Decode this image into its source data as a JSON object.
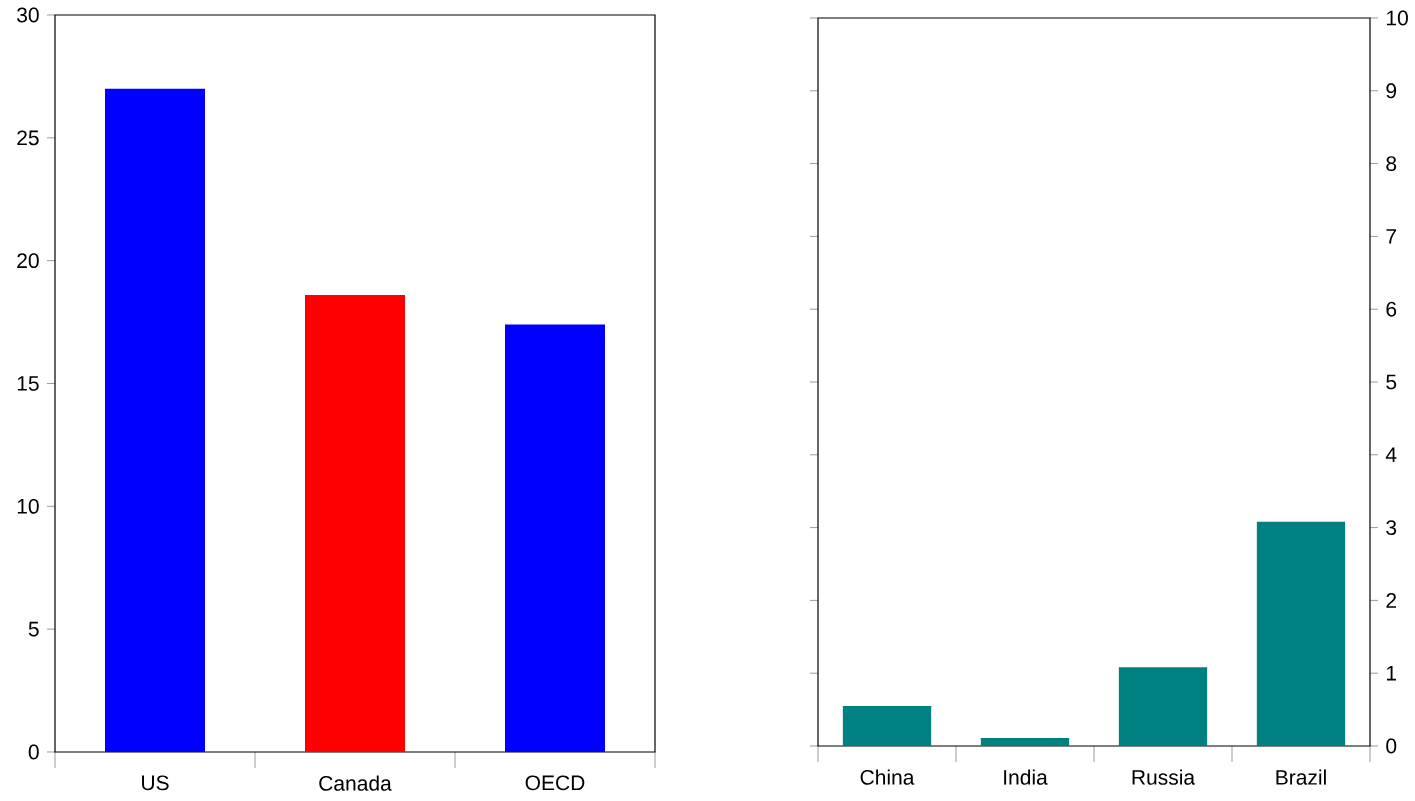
{
  "chart_data": [
    {
      "type": "bar",
      "categories": [
        "US",
        "Canada",
        "OECD"
      ],
      "values": [
        27.0,
        18.6,
        17.4
      ],
      "colors": [
        "#0000ff",
        "#ff0000",
        "#0000ff"
      ],
      "ylim": [
        0,
        30
      ],
      "yticks": [
        0,
        5,
        10,
        15,
        20,
        25,
        30
      ]
    },
    {
      "type": "bar",
      "categories": [
        "China",
        "India",
        "Russia",
        "Brazil"
      ],
      "values": [
        0.55,
        0.11,
        1.08,
        3.08
      ],
      "colors": [
        "#008080",
        "#008080",
        "#008080",
        "#008080"
      ],
      "ylim": [
        0,
        10
      ],
      "yticks": [
        0,
        1,
        2,
        3,
        4,
        5,
        6,
        7,
        8,
        9,
        10
      ]
    }
  ]
}
